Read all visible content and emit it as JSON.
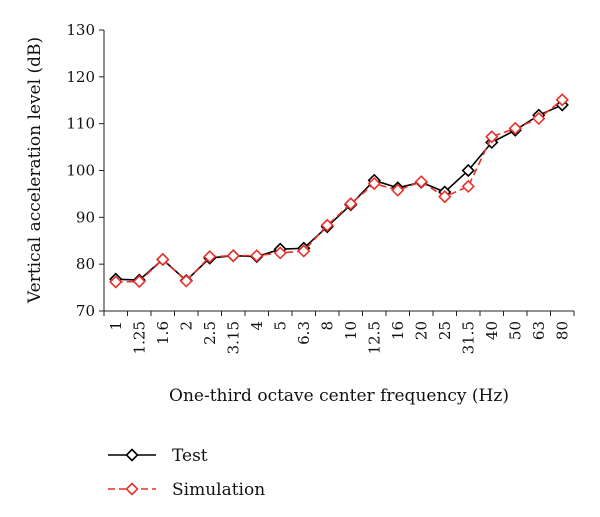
{
  "chart_data": {
    "type": "line",
    "xlabel": "One-third octave center frequency (Hz)",
    "ylabel": "Vertical acceleration level (dB)",
    "ylim": [
      70,
      130
    ],
    "yticks": [
      "70",
      "80",
      "90",
      "100",
      "110",
      "120",
      "130"
    ],
    "categories": [
      "1",
      "1.25",
      "1.6",
      "2",
      "2.5",
      "3.15",
      "4",
      "5",
      "6.3",
      "8",
      "10",
      "12.5",
      "16",
      "20",
      "25",
      "31.5",
      "40",
      "50",
      "63",
      "80"
    ],
    "grid": false,
    "legend": "bottom-left",
    "series": [
      {
        "name": "Test",
        "color": "#000000",
        "line_style": "solid",
        "marker": "diamond",
        "values": [
          76.8,
          76.6,
          81.0,
          76.5,
          81.3,
          81.8,
          81.6,
          83.2,
          83.4,
          88.0,
          92.7,
          97.9,
          96.3,
          97.5,
          95.4,
          100.0,
          106.0,
          108.6,
          111.8,
          114.0
        ]
      },
      {
        "name": "Simulation",
        "color": "#e8312a",
        "line_style": "dashed",
        "marker": "diamond",
        "values": [
          76.2,
          76.3,
          81.0,
          76.4,
          81.6,
          81.8,
          81.8,
          82.4,
          82.8,
          88.3,
          92.9,
          97.2,
          95.8,
          97.6,
          94.4,
          96.6,
          107.2,
          109.0,
          111.1,
          115.1
        ]
      }
    ]
  }
}
